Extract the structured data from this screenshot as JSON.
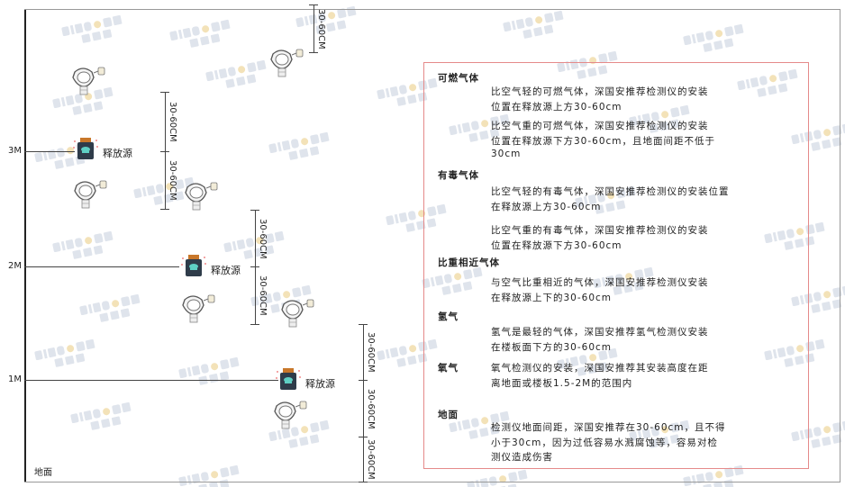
{
  "watermark": {
    "brand": "SINGOAN",
    "cn": "深国安"
  },
  "levels": {
    "m3": "3M",
    "m2": "2M",
    "m1": "1M",
    "ground": "地面"
  },
  "source_label": "释放源",
  "dimension_label": "30-60CM",
  "panel": {
    "sections": [
      {
        "heading": "可燃气体",
        "paragraphs": [
          [
            "比空气轻的可燃气体，深国安推荐检测仪的安装",
            "位置在释放源上方30-60cm"
          ],
          [
            "比空气重的可燃气体，深国安推荐检测仪的安装",
            "位置在释放源下方30-60cm，且地面间距不低于",
            "30cm"
          ]
        ]
      },
      {
        "heading": "有毒气体",
        "paragraphs": [
          [
            "比空气轻的有毒气体，深国安推荐检测仪的安装位置",
            "在释放源上方30-60cm"
          ],
          [
            "比空气重的有毒气体，深国安推荐检测仪的安装",
            "位置在释放源下方30-60cm"
          ]
        ]
      },
      {
        "heading": "比重相近气体",
        "paragraphs": [
          [
            "与空气比重相近的气体，深国安推荐检测仪安装",
            "在释放源上下的30-60cm"
          ]
        ]
      },
      {
        "heading": "氢气",
        "paragraphs": [
          [
            "氢气是最轻的气体，深国安推荐氢气检测仪安装",
            "在楼板面下方的30-60cm"
          ]
        ]
      },
      {
        "heading": "氧气",
        "paragraphs": [
          [
            "氧气检测仪的安装，深国安推荐其安装高度在距",
            "离地面或楼板1.5-2M的范围内"
          ]
        ]
      },
      {
        "heading": "地面",
        "paragraphs": [
          [
            "检测仪地面间距，深国安推荐在30-60cm，且不得",
            "小于30cm，因为过低容易水溅腐蚀等，容易对检",
            "测仪造成伤害"
          ]
        ]
      }
    ]
  }
}
